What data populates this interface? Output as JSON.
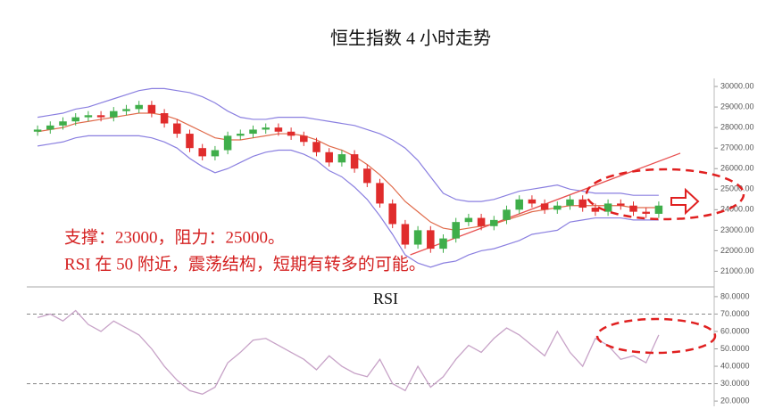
{
  "chart_data": [
    {
      "type": "candlestick",
      "title": "恒生指数 4 小时走势",
      "annotations": [
        "支撑：23000，阻力：25000。",
        "RSI 在 50 附近，震荡结构，短期有转多的可能。"
      ],
      "open": [
        27800,
        27900,
        28100,
        28300,
        28500,
        28600,
        28500,
        28800,
        28900,
        29100,
        28700,
        28200,
        27700,
        27000,
        26600,
        26900,
        27600,
        27700,
        27900,
        28000,
        27800,
        27600,
        27300,
        26800,
        26300,
        26700,
        26000,
        25300,
        24300,
        23300,
        22300,
        23000,
        22100,
        22600,
        23400,
        23600,
        23200,
        23500,
        24000,
        24500,
        24300,
        24000,
        24200,
        24500,
        24100,
        23900,
        24300,
        24200,
        23900,
        23800
      ],
      "high": [
        28100,
        28300,
        28500,
        28700,
        28800,
        28800,
        29000,
        29100,
        29300,
        29300,
        28900,
        28400,
        27900,
        27200,
        27100,
        27800,
        27900,
        28100,
        28200,
        28200,
        28000,
        27800,
        27500,
        27000,
        26900,
        26900,
        26200,
        25500,
        24500,
        23500,
        23200,
        23200,
        22800,
        23600,
        23800,
        23800,
        23700,
        24200,
        24700,
        24700,
        24500,
        24400,
        24700,
        24700,
        24300,
        24500,
        24500,
        24400,
        24100,
        24400
      ],
      "low": [
        27600,
        27700,
        27900,
        28100,
        28300,
        28300,
        28300,
        28600,
        28700,
        28500,
        28000,
        27500,
        26800,
        26400,
        26400,
        26700,
        27400,
        27500,
        27700,
        27600,
        27400,
        27100,
        26600,
        26100,
        26100,
        25800,
        25100,
        24100,
        23100,
        22100,
        22100,
        21900,
        21900,
        22400,
        23200,
        23000,
        23000,
        23300,
        23800,
        24100,
        23800,
        23800,
        24000,
        23900,
        23700,
        23700,
        24000,
        23700,
        23600,
        23600
      ],
      "close": [
        27900,
        28100,
        28300,
        28500,
        28600,
        28500,
        28800,
        28900,
        29100,
        28700,
        28200,
        27700,
        27000,
        26600,
        26900,
        27600,
        27700,
        27900,
        28000,
        27800,
        27600,
        27300,
        26800,
        26300,
        26700,
        26000,
        25300,
        24300,
        23300,
        22300,
        23000,
        22100,
        22600,
        23400,
        23600,
        23200,
        23500,
        24000,
        24500,
        24300,
        24000,
        24200,
        24500,
        24100,
        23900,
        24300,
        24200,
        23900,
        23800,
        24200
      ],
      "bands": [
        {
          "color": "#8a7fe0",
          "values": [
            28500,
            28600,
            28700,
            28900,
            29000,
            29200,
            29400,
            29600,
            29800,
            29900,
            29900,
            29800,
            29700,
            29500,
            29200,
            28800,
            28500,
            28400,
            28400,
            28500,
            28500,
            28500,
            28400,
            28300,
            28200,
            28100,
            27900,
            27700,
            27400,
            27000,
            26400,
            25600,
            24800,
            24500,
            24400,
            24400,
            24500,
            24700,
            24900,
            25000,
            25100,
            25200,
            25000,
            24900,
            24800,
            24800,
            24800,
            24700,
            24700,
            24700
          ]
        },
        {
          "color": "#e06a4a",
          "values": [
            27800,
            27900,
            28000,
            28200,
            28300,
            28400,
            28500,
            28600,
            28700,
            28700,
            28600,
            28400,
            28100,
            27800,
            27500,
            27400,
            27400,
            27500,
            27600,
            27700,
            27700,
            27600,
            27400,
            27100,
            26900,
            26600,
            26200,
            25700,
            25100,
            24400,
            23900,
            23400,
            23100,
            23000,
            23100,
            23200,
            23300,
            23500,
            23700,
            23900,
            24000,
            24100,
            24200,
            24200,
            24200,
            24200,
            24200,
            24100,
            24100,
            24100
          ]
        },
        {
          "color": "#8a7fe0",
          "values": [
            27100,
            27200,
            27300,
            27500,
            27600,
            27600,
            27600,
            27600,
            27600,
            27500,
            27300,
            27000,
            26500,
            26100,
            25800,
            26000,
            26300,
            26600,
            26800,
            26900,
            26900,
            26700,
            26400,
            25900,
            25600,
            25100,
            24500,
            23700,
            22800,
            21800,
            21400,
            21200,
            21400,
            21500,
            21800,
            22000,
            22100,
            22300,
            22500,
            22800,
            22900,
            23000,
            23400,
            23500,
            23600,
            23600,
            23600,
            23500,
            23500,
            23500
          ]
        }
      ],
      "up_color": "#3fae4a",
      "down_color": "#e02c2c",
      "trendline": {
        "color": "#e85050",
        "x": [
          29.4,
          50.7
        ],
        "values": [
          21800,
          26750
        ]
      },
      "ylim": [
        20500,
        31000
      ],
      "yticks": [
        {
          "value": 21000,
          "label": "21000.00"
        },
        {
          "value": 22000,
          "label": "22000.00"
        },
        {
          "value": 23000,
          "label": "23000.00"
        },
        {
          "value": 24000,
          "label": "24000.00"
        },
        {
          "value": 25000,
          "label": "25000.00"
        },
        {
          "value": 26000,
          "label": "26000.00"
        },
        {
          "value": 27000,
          "label": "27000.00"
        },
        {
          "value": 28000,
          "label": "28000.00"
        },
        {
          "value": 29000,
          "label": "29000.00"
        },
        {
          "value": 30000,
          "label": "30000.00"
        }
      ]
    },
    {
      "type": "line",
      "title": "RSI",
      "color": "#c7a2c7",
      "values": [
        68,
        70,
        66,
        72,
        64,
        60,
        66,
        62,
        58,
        50,
        40,
        32,
        26,
        24,
        28,
        42,
        48,
        55,
        56,
        52,
        48,
        44,
        38,
        46,
        40,
        36,
        34,
        44,
        30,
        26,
        40,
        28,
        34,
        44,
        52,
        48,
        56,
        62,
        58,
        52,
        46,
        60,
        48,
        40,
        56,
        52,
        44,
        46,
        42,
        58
      ],
      "ref_lines": [
        70,
        30
      ],
      "ylim": [
        18,
        82
      ],
      "yticks": [
        {
          "value": 20,
          "label": "20.0000"
        },
        {
          "value": 30,
          "label": "30.0000"
        },
        {
          "value": 40,
          "label": "40.0000"
        },
        {
          "value": 50,
          "label": "50.0000"
        },
        {
          "value": 60,
          "label": "60.0000"
        },
        {
          "value": 70,
          "label": "70.0000"
        },
        {
          "value": 80,
          "label": "80.0000"
        }
      ]
    }
  ]
}
